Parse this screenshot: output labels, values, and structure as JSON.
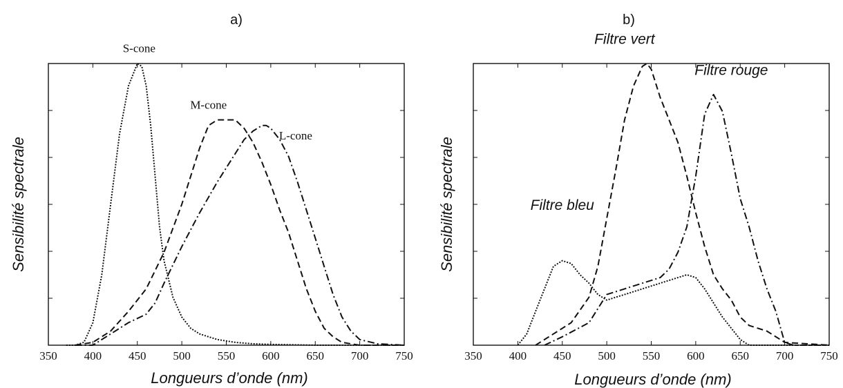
{
  "chart_data": [
    {
      "type": "line",
      "panel_label": "a)",
      "xlabel": "Longueurs d’onde (nm)",
      "ylabel": "Sensibilité spectrale",
      "xlim": [
        350,
        750
      ],
      "ylim": [
        0,
        1
      ],
      "xticks": [
        350,
        400,
        450,
        500,
        550,
        600,
        650,
        700,
        750
      ],
      "yticks_count": 6,
      "series": [
        {
          "name": "S-cone",
          "style": "dotted",
          "x": [
            370,
            380,
            390,
            400,
            410,
            420,
            430,
            440,
            450,
            455,
            460,
            465,
            470,
            475,
            480,
            490,
            500,
            510,
            520,
            530,
            540,
            560,
            580,
            600,
            650,
            700,
            750
          ],
          "y": [
            0.0,
            0.0,
            0.01,
            0.08,
            0.25,
            0.5,
            0.75,
            0.92,
            1.0,
            0.99,
            0.92,
            0.78,
            0.6,
            0.42,
            0.3,
            0.17,
            0.1,
            0.06,
            0.04,
            0.03,
            0.02,
            0.01,
            0.005,
            0.003,
            0.0,
            0.0,
            0.0
          ]
        },
        {
          "name": "M-cone",
          "style": "dashed",
          "x": [
            380,
            400,
            420,
            440,
            460,
            480,
            500,
            510,
            520,
            530,
            540,
            550,
            560,
            570,
            580,
            590,
            600,
            610,
            620,
            630,
            640,
            650,
            660,
            670,
            680,
            700,
            720,
            750
          ],
          "y": [
            0.0,
            0.01,
            0.05,
            0.12,
            0.2,
            0.33,
            0.5,
            0.6,
            0.7,
            0.78,
            0.8,
            0.8,
            0.8,
            0.77,
            0.72,
            0.65,
            0.57,
            0.48,
            0.4,
            0.3,
            0.2,
            0.12,
            0.06,
            0.03,
            0.01,
            0.0,
            0.0,
            0.0
          ]
        },
        {
          "name": "L-cone",
          "style": "dashdot",
          "x": [
            380,
            400,
            420,
            440,
            460,
            470,
            480,
            500,
            520,
            540,
            560,
            570,
            580,
            590,
            595,
            600,
            610,
            620,
            630,
            640,
            650,
            660,
            670,
            680,
            690,
            700,
            720,
            750
          ],
          "y": [
            0.0,
            0.0,
            0.04,
            0.08,
            0.11,
            0.15,
            0.22,
            0.35,
            0.47,
            0.58,
            0.68,
            0.73,
            0.76,
            0.78,
            0.78,
            0.77,
            0.73,
            0.67,
            0.58,
            0.48,
            0.38,
            0.28,
            0.18,
            0.1,
            0.05,
            0.02,
            0.005,
            0.0
          ]
        }
      ],
      "annotations": [
        {
          "text": "S-cone",
          "x": 452,
          "y": 1.04
        },
        {
          "text": "M-cone",
          "x": 530,
          "y": 0.84
        },
        {
          "text": "L-cone",
          "x": 628,
          "y": 0.73
        }
      ]
    },
    {
      "type": "line",
      "panel_label": "b)",
      "xlabel": "Longueurs d’onde (nm)",
      "ylabel": "Sensibilité spectrale",
      "xlim": [
        350,
        750
      ],
      "ylim": [
        0,
        1
      ],
      "xticks": [
        350,
        400,
        450,
        500,
        550,
        600,
        650,
        700,
        750
      ],
      "yticks_count": 6,
      "series": [
        {
          "name": "Filtre bleu",
          "style": "dotted",
          "x": [
            400,
            410,
            420,
            430,
            440,
            450,
            460,
            470,
            480,
            490,
            500,
            510,
            520,
            540,
            560,
            580,
            590,
            600,
            610,
            620,
            630,
            640,
            650,
            660,
            680,
            700,
            750
          ],
          "y": [
            0.0,
            0.04,
            0.12,
            0.2,
            0.28,
            0.3,
            0.29,
            0.25,
            0.22,
            0.18,
            0.16,
            0.17,
            0.18,
            0.2,
            0.22,
            0.24,
            0.25,
            0.24,
            0.2,
            0.15,
            0.1,
            0.06,
            0.02,
            0.0,
            0.0,
            0.0,
            0.0
          ]
        },
        {
          "name": "Filtre vert",
          "style": "dashed",
          "x": [
            420,
            440,
            460,
            480,
            490,
            500,
            510,
            520,
            530,
            540,
            545,
            550,
            560,
            570,
            580,
            590,
            600,
            610,
            620,
            630,
            640,
            650,
            660,
            680,
            700,
            750
          ],
          "y": [
            0.0,
            0.04,
            0.08,
            0.17,
            0.28,
            0.45,
            0.62,
            0.8,
            0.92,
            0.99,
            1.0,
            0.98,
            0.88,
            0.8,
            0.72,
            0.6,
            0.47,
            0.35,
            0.25,
            0.2,
            0.16,
            0.1,
            0.07,
            0.05,
            0.01,
            0.0
          ]
        },
        {
          "name": "Filtre rouge",
          "style": "dashdot",
          "x": [
            430,
            450,
            480,
            500,
            520,
            540,
            560,
            570,
            580,
            590,
            600,
            610,
            620,
            630,
            640,
            650,
            660,
            670,
            680,
            690,
            700,
            710,
            750
          ],
          "y": [
            0.0,
            0.03,
            0.08,
            0.18,
            0.2,
            0.22,
            0.24,
            0.27,
            0.33,
            0.42,
            0.6,
            0.82,
            0.89,
            0.83,
            0.68,
            0.52,
            0.42,
            0.3,
            0.2,
            0.12,
            0.01,
            0.0,
            0.0
          ]
        }
      ],
      "annotations": [
        {
          "text": "Filtre vert",
          "x": 520,
          "y": 1.07
        },
        {
          "text": "Filtre rouge",
          "x": 640,
          "y": 0.96
        },
        {
          "text": "Filtre bleu",
          "x": 450,
          "y": 0.48
        }
      ]
    }
  ]
}
